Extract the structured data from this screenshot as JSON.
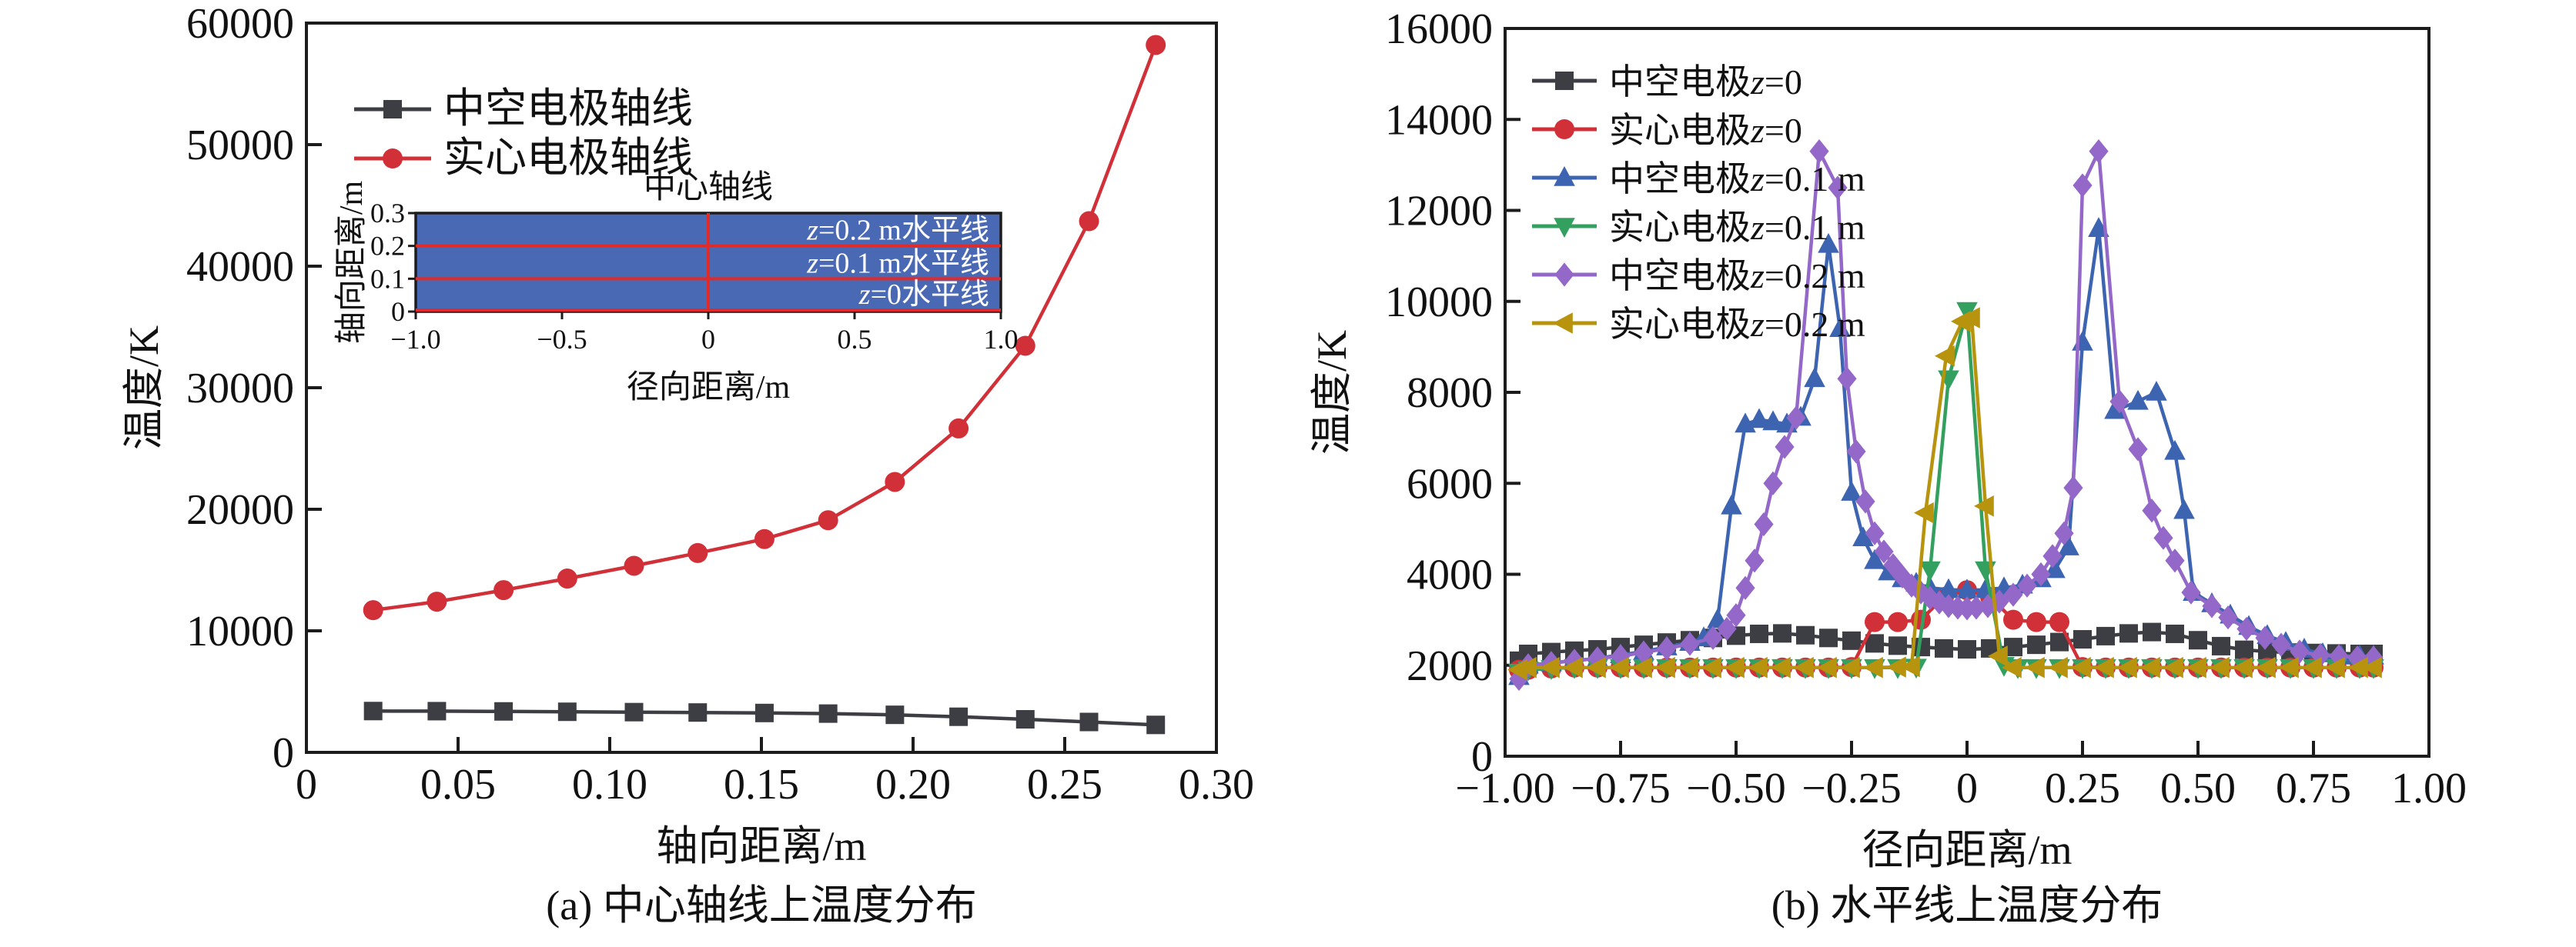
{
  "page": {
    "background": "#ffffff",
    "frame_color": "#1c1c1c"
  },
  "chart_data": [
    {
      "id": "a",
      "type": "line",
      "caption": "(a) 中心轴线上温度分布",
      "xlabel": "轴向距离/m",
      "ylabel": "温度/K",
      "xlim": [
        0,
        0.3
      ],
      "ylim": [
        0,
        60000
      ],
      "grid": false,
      "legend_position": "top-left",
      "xticks": [
        {
          "v": 0,
          "label": "0"
        },
        {
          "v": 0.05,
          "label": "0.05"
        },
        {
          "v": 0.1,
          "label": "0.10"
        },
        {
          "v": 0.15,
          "label": "0.15"
        },
        {
          "v": 0.2,
          "label": "0.20"
        },
        {
          "v": 0.25,
          "label": "0.25"
        },
        {
          "v": 0.3,
          "label": "0.30"
        }
      ],
      "yticks": [
        {
          "v": 0,
          "label": "0"
        },
        {
          "v": 10000,
          "label": "10000"
        },
        {
          "v": 20000,
          "label": "20000"
        },
        {
          "v": 30000,
          "label": "30000"
        },
        {
          "v": 40000,
          "label": "40000"
        },
        {
          "v": 50000,
          "label": "50000"
        },
        {
          "v": 60000,
          "label": "60000"
        }
      ],
      "series": [
        {
          "name": "中空电极轴线",
          "slug": "hollow-electrode-axis",
          "color": "#3d3d44",
          "marker": "square",
          "x": [
            0.022,
            0.043,
            0.065,
            0.086,
            0.108,
            0.129,
            0.151,
            0.172,
            0.194,
            0.215,
            0.237,
            0.258,
            0.28
          ],
          "y": [
            3400,
            3390,
            3370,
            3340,
            3310,
            3280,
            3240,
            3190,
            3090,
            2930,
            2720,
            2500,
            2260
          ]
        },
        {
          "name": "实心电极轴线",
          "slug": "solid-electrode-axis",
          "color": "#d13038",
          "marker": "circle",
          "x": [
            0.022,
            0.043,
            0.065,
            0.086,
            0.108,
            0.129,
            0.151,
            0.172,
            0.194,
            0.215,
            0.237,
            0.258,
            0.28
          ],
          "y": [
            11700,
            12400,
            13350,
            14300,
            15350,
            16400,
            17550,
            19100,
            22250,
            26650,
            33450,
            43700,
            58200
          ]
        }
      ],
      "inset": {
        "title": "中心轴线",
        "xlabel": "径向距离/m",
        "ylabel": "轴向距离/m",
        "xlim": [
          -1,
          1
        ],
        "ylim": [
          0,
          0.3
        ],
        "fill_color": "#4a69b5",
        "line_color": "#e02b2b",
        "label_color": "#ffffff",
        "center_line_x": 0,
        "xticks": [
          {
            "v": -1,
            "label": "−1.0"
          },
          {
            "v": -0.5,
            "label": "−0.5"
          },
          {
            "v": 0,
            "label": "0"
          },
          {
            "v": 0.5,
            "label": "0.5"
          },
          {
            "v": 1,
            "label": "1.0"
          }
        ],
        "yticks": [
          {
            "v": 0,
            "label": "0"
          },
          {
            "v": 0.1,
            "label": "0.1"
          },
          {
            "v": 0.2,
            "label": "0.2"
          },
          {
            "v": 0.3,
            "label": "0.3"
          }
        ],
        "hlines": [
          {
            "y": 0.2,
            "label": "z=0.2 m水平线"
          },
          {
            "y": 0.1,
            "label": "z=0.1 m水平线"
          },
          {
            "y": 0,
            "label": "z=0水平线"
          }
        ]
      }
    },
    {
      "id": "b",
      "type": "line",
      "caption": "(b) 水平线上温度分布",
      "xlabel": "径向距离/m",
      "ylabel": "温度/K",
      "xlim": [
        -1.0,
        1.0
      ],
      "ylim": [
        0,
        16000
      ],
      "grid": false,
      "legend_position": "top-left",
      "xticks": [
        {
          "v": -1.0,
          "label": "−1.00"
        },
        {
          "v": -0.75,
          "label": "−0.75"
        },
        {
          "v": -0.5,
          "label": "−0.50"
        },
        {
          "v": -0.25,
          "label": "−0.25"
        },
        {
          "v": 0,
          "label": "0"
        },
        {
          "v": 0.25,
          "label": "0.25"
        },
        {
          "v": 0.5,
          "label": "0.50"
        },
        {
          "v": 0.75,
          "label": "0.75"
        },
        {
          "v": 1.0,
          "label": "1.00"
        }
      ],
      "yticks": [
        {
          "v": 0,
          "label": "0"
        },
        {
          "v": 2000,
          "label": "2000"
        },
        {
          "v": 4000,
          "label": "4000"
        },
        {
          "v": 6000,
          "label": "6000"
        },
        {
          "v": 8000,
          "label": "8000"
        },
        {
          "v": 10000,
          "label": "10000"
        },
        {
          "v": 12000,
          "label": "12000"
        },
        {
          "v": 14000,
          "label": "14000"
        },
        {
          "v": 16000,
          "label": "16000"
        }
      ],
      "series": [
        {
          "name": "中空电极z=0",
          "slug": "hollow-electrode-z-0",
          "color": "#3d3d44",
          "marker": "square",
          "x": [
            -0.97,
            -0.95,
            -0.9,
            -0.85,
            -0.8,
            -0.75,
            -0.7,
            -0.65,
            -0.6,
            -0.55,
            -0.5,
            -0.45,
            -0.4,
            -0.35,
            -0.3,
            -0.25,
            -0.2,
            -0.15,
            -0.1,
            -0.05,
            0,
            0.05,
            0.1,
            0.15,
            0.2,
            0.25,
            0.3,
            0.35,
            0.4,
            0.45,
            0.5,
            0.55,
            0.6,
            0.65,
            0.7,
            0.75,
            0.8,
            0.85,
            0.88
          ],
          "y": [
            2100,
            2250,
            2290,
            2320,
            2350,
            2400,
            2450,
            2500,
            2550,
            2600,
            2650,
            2690,
            2700,
            2660,
            2600,
            2540,
            2480,
            2430,
            2400,
            2370,
            2350,
            2370,
            2400,
            2450,
            2510,
            2570,
            2640,
            2700,
            2730,
            2690,
            2550,
            2420,
            2340,
            2300,
            2280,
            2270,
            2260,
            2250,
            2250
          ]
        },
        {
          "name": "实心电极z=0",
          "slug": "solid-electrode-z-0",
          "color": "#d13038",
          "marker": "circle",
          "x": [
            -0.97,
            -0.95,
            -0.9,
            -0.85,
            -0.8,
            -0.75,
            -0.7,
            -0.65,
            -0.6,
            -0.55,
            -0.5,
            -0.45,
            -0.4,
            -0.35,
            -0.3,
            -0.25,
            -0.2,
            -0.15,
            -0.1,
            -0.05,
            0,
            0.05,
            0.1,
            0.15,
            0.2,
            0.25,
            0.3,
            0.35,
            0.4,
            0.45,
            0.5,
            0.55,
            0.6,
            0.65,
            0.7,
            0.75,
            0.8,
            0.85,
            0.88
          ],
          "y": [
            1900,
            1900,
            1930,
            1950,
            1950,
            1950,
            1950,
            1950,
            1950,
            1950,
            1950,
            1950,
            1950,
            1950,
            1950,
            1960,
            2950,
            2950,
            3000,
            3500,
            3650,
            3500,
            3000,
            2950,
            2950,
            1960,
            1950,
            1950,
            1950,
            1950,
            1950,
            1950,
            1950,
            1950,
            1950,
            1950,
            1950,
            1950,
            1950
          ]
        },
        {
          "name": "中空电极z=0.1 m",
          "slug": "hollow-electrode-z-0-1m",
          "color": "#3d64b0",
          "marker": "triangle-up",
          "x": [
            -0.97,
            -0.95,
            -0.9,
            -0.85,
            -0.8,
            -0.75,
            -0.7,
            -0.65,
            -0.6,
            -0.57,
            -0.54,
            -0.51,
            -0.48,
            -0.45,
            -0.42,
            -0.39,
            -0.36,
            -0.33,
            -0.3,
            -0.275,
            -0.25,
            -0.225,
            -0.2,
            -0.17,
            -0.14,
            -0.11,
            -0.08,
            -0.04,
            0,
            0.04,
            0.08,
            0.12,
            0.16,
            0.19,
            0.22,
            0.25,
            0.285,
            0.32,
            0.37,
            0.41,
            0.45,
            0.47,
            0.49,
            0.53,
            0.57,
            0.61,
            0.65,
            0.69,
            0.73,
            0.77,
            0.81,
            0.85,
            0.88
          ],
          "y": [
            1750,
            2000,
            2050,
            2100,
            2150,
            2230,
            2300,
            2400,
            2500,
            2600,
            3000,
            5500,
            7300,
            7400,
            7350,
            7300,
            7450,
            8300,
            11250,
            9400,
            5800,
            4800,
            4300,
            4050,
            3900,
            3800,
            3700,
            3660,
            3650,
            3660,
            3700,
            3760,
            3900,
            4100,
            4600,
            9100,
            11600,
            7600,
            7800,
            8000,
            6700,
            5400,
            3600,
            3350,
            3100,
            2850,
            2650,
            2500,
            2350,
            2250,
            2200,
            2200,
            2200
          ]
        },
        {
          "name": "实心电极z=0.1 m",
          "slug": "solid-electrode-z-0-1m",
          "color": "#33a05f",
          "marker": "triangle-down",
          "x": [
            -0.97,
            -0.95,
            -0.9,
            -0.85,
            -0.8,
            -0.75,
            -0.7,
            -0.65,
            -0.6,
            -0.55,
            -0.5,
            -0.45,
            -0.4,
            -0.35,
            -0.3,
            -0.25,
            -0.2,
            -0.15,
            -0.11,
            -0.08,
            -0.04,
            0,
            0.04,
            0.08,
            0.11,
            0.15,
            0.2,
            0.25,
            0.3,
            0.35,
            0.4,
            0.45,
            0.5,
            0.55,
            0.6,
            0.65,
            0.7,
            0.75,
            0.8,
            0.85,
            0.88
          ],
          "y": [
            1850,
            1900,
            1930,
            1950,
            1950,
            1950,
            1950,
            1950,
            1950,
            1950,
            1950,
            1950,
            1950,
            1950,
            1950,
            1950,
            1950,
            1950,
            1960,
            4100,
            8300,
            9800,
            4100,
            2000,
            1950,
            1950,
            1950,
            1950,
            1950,
            1950,
            1950,
            1950,
            1950,
            1950,
            1950,
            1950,
            1950,
            1950,
            1950,
            1950,
            1950
          ]
        },
        {
          "name": "中空电极z=0.2 m",
          "slug": "hollow-electrode-z-0-2m",
          "color": "#9468c8",
          "marker": "diamond",
          "x": [
            -0.97,
            -0.95,
            -0.9,
            -0.85,
            -0.8,
            -0.75,
            -0.7,
            -0.65,
            -0.6,
            -0.55,
            -0.52,
            -0.5,
            -0.48,
            -0.46,
            -0.44,
            -0.42,
            -0.395,
            -0.37,
            -0.32,
            -0.28,
            -0.26,
            -0.24,
            -0.22,
            -0.2,
            -0.18,
            -0.16,
            -0.14,
            -0.12,
            -0.1,
            -0.08,
            -0.06,
            -0.04,
            -0.02,
            0,
            0.02,
            0.045,
            0.07,
            0.1,
            0.13,
            0.16,
            0.185,
            0.21,
            0.23,
            0.25,
            0.285,
            0.33,
            0.37,
            0.4,
            0.425,
            0.45,
            0.485,
            0.53,
            0.565,
            0.605,
            0.645,
            0.68,
            0.72,
            0.765,
            0.805,
            0.845,
            0.88
          ],
          "y": [
            1700,
            2000,
            2050,
            2100,
            2150,
            2200,
            2280,
            2370,
            2470,
            2600,
            2800,
            3100,
            3700,
            4300,
            5100,
            6000,
            6800,
            7440,
            13300,
            12500,
            8300,
            6700,
            5600,
            4900,
            4500,
            4200,
            3950,
            3750,
            3600,
            3480,
            3380,
            3300,
            3265,
            3250,
            3265,
            3300,
            3400,
            3550,
            3750,
            4000,
            4400,
            4900,
            5900,
            12550,
            13300,
            7800,
            6750,
            5400,
            4800,
            4300,
            3600,
            3300,
            3050,
            2800,
            2600,
            2450,
            2300,
            2220,
            2200,
            2170,
            2170
          ]
        },
        {
          "name": "实心电极z=0.2 m",
          "slug": "solid-electrode-z-0-2m",
          "color": "#b8930e",
          "marker": "triangle-left",
          "x": [
            -0.97,
            -0.95,
            -0.9,
            -0.85,
            -0.8,
            -0.75,
            -0.7,
            -0.65,
            -0.6,
            -0.55,
            -0.5,
            -0.45,
            -0.4,
            -0.35,
            -0.3,
            -0.25,
            -0.2,
            -0.15,
            -0.12,
            -0.09,
            -0.045,
            -0.01,
            0.01,
            0.04,
            0.07,
            0.1,
            0.15,
            0.2,
            0.25,
            0.3,
            0.35,
            0.4,
            0.45,
            0.5,
            0.55,
            0.6,
            0.65,
            0.7,
            0.75,
            0.8,
            0.85,
            0.88
          ],
          "y": [
            1900,
            1950,
            1950,
            1950,
            1950,
            1950,
            1950,
            1950,
            1950,
            1950,
            1950,
            1950,
            1950,
            1950,
            1950,
            1950,
            1950,
            1960,
            1970,
            5350,
            8800,
            9560,
            9640,
            5500,
            2200,
            1950,
            1950,
            1950,
            1950,
            1950,
            1950,
            1950,
            1950,
            1950,
            1950,
            1950,
            1950,
            1950,
            1950,
            1950,
            1950,
            1950
          ]
        }
      ]
    }
  ]
}
